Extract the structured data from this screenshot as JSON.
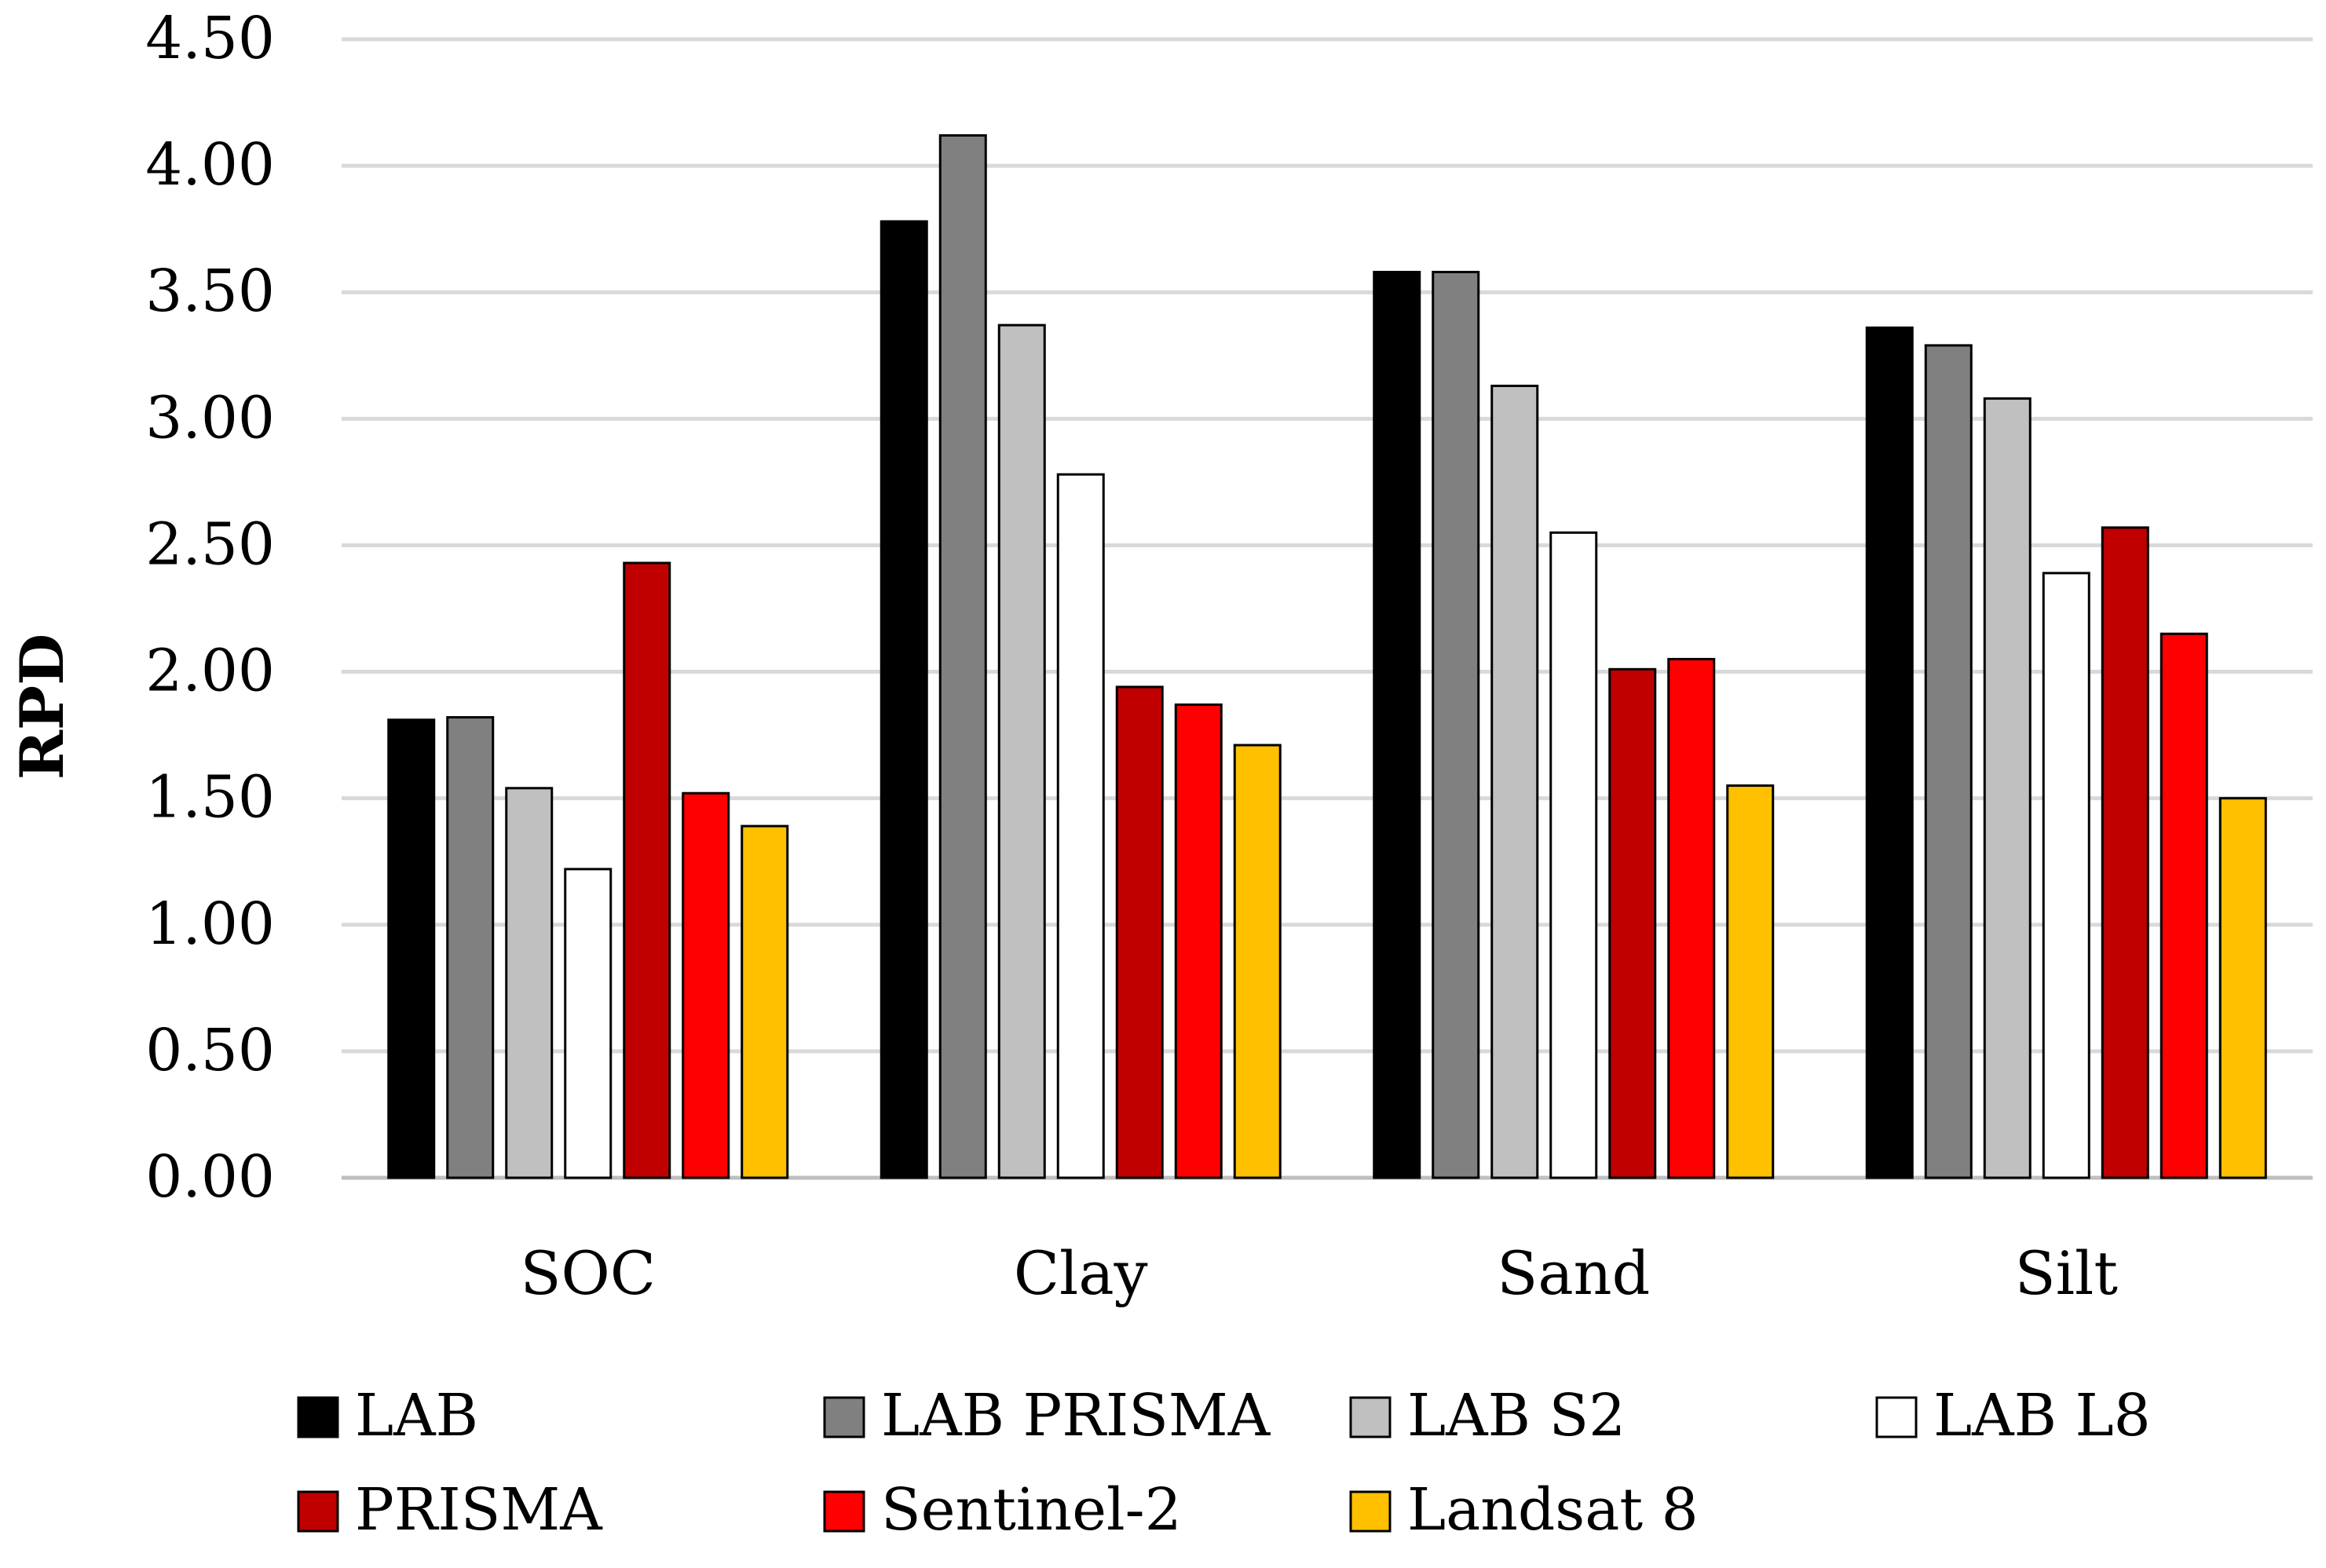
{
  "chart_data": {
    "type": "bar",
    "title": "",
    "xlabel": "",
    "ylabel": "RPD",
    "ylim": [
      0,
      4.5
    ],
    "ytick_step": 0.5,
    "ytick_labels": [
      "0.00",
      "0.50",
      "1.00",
      "1.50",
      "2.00",
      "2.50",
      "3.00",
      "3.50",
      "4.00",
      "4.50"
    ],
    "grid": true,
    "legend_position": "bottom",
    "categories": [
      "SOC",
      "Clay",
      "Sand",
      "Silt"
    ],
    "series": [
      {
        "name": "LAB",
        "color": "#000000",
        "values": [
          1.81,
          3.78,
          3.58,
          3.36
        ]
      },
      {
        "name": "LAB PRISMA",
        "color": "#808080",
        "values": [
          1.82,
          4.12,
          3.58,
          3.29
        ]
      },
      {
        "name": "LAB S2",
        "color": "#c0c0c0",
        "values": [
          1.54,
          3.37,
          3.13,
          3.08
        ]
      },
      {
        "name": "LAB L8",
        "color": "#ffffff",
        "values": [
          1.22,
          2.78,
          2.55,
          2.39
        ]
      },
      {
        "name": "PRISMA",
        "color": "#c00000",
        "values": [
          2.43,
          1.94,
          2.01,
          2.57
        ]
      },
      {
        "name": "Sentinel-2",
        "color": "#ff0000",
        "values": [
          1.52,
          1.87,
          2.05,
          2.15
        ]
      },
      {
        "name": "Landsat 8",
        "color": "#ffc000",
        "values": [
          1.39,
          1.71,
          1.55,
          1.5
        ]
      }
    ]
  }
}
